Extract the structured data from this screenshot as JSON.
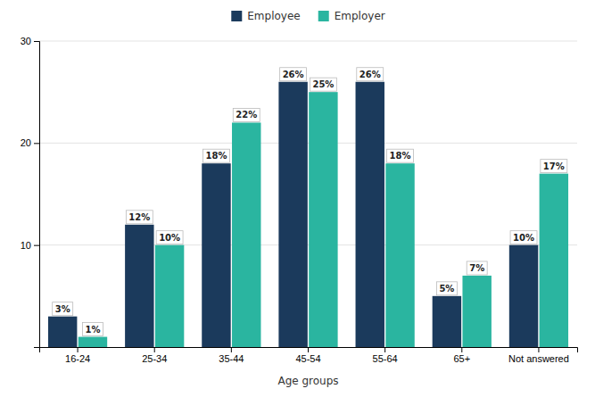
{
  "chart_data": {
    "type": "bar",
    "x_label": "Age groups",
    "categories": [
      "16-24",
      "25-34",
      "35-44",
      "45-54",
      "55-64",
      "65+",
      "Not answered"
    ],
    "series": [
      {
        "name": "Employee",
        "color": "#1b3a5c",
        "values": [
          3,
          12,
          18,
          26,
          26,
          5,
          10
        ],
        "value_labels": [
          "3%",
          "12%",
          "18%",
          "26%",
          "26%",
          "5%",
          "10%"
        ]
      },
      {
        "name": "Employer",
        "color": "#2ab5a0",
        "values": [
          1,
          10,
          22,
          25,
          18,
          7,
          17
        ],
        "value_labels": [
          "1%",
          "10%",
          "22%",
          "25%",
          "18%",
          "7%",
          "17%"
        ]
      }
    ],
    "ylim": [
      0,
      30
    ],
    "yticks": [
      10,
      20,
      30
    ],
    "grid": true,
    "legend": "top",
    "data_labels": true
  }
}
